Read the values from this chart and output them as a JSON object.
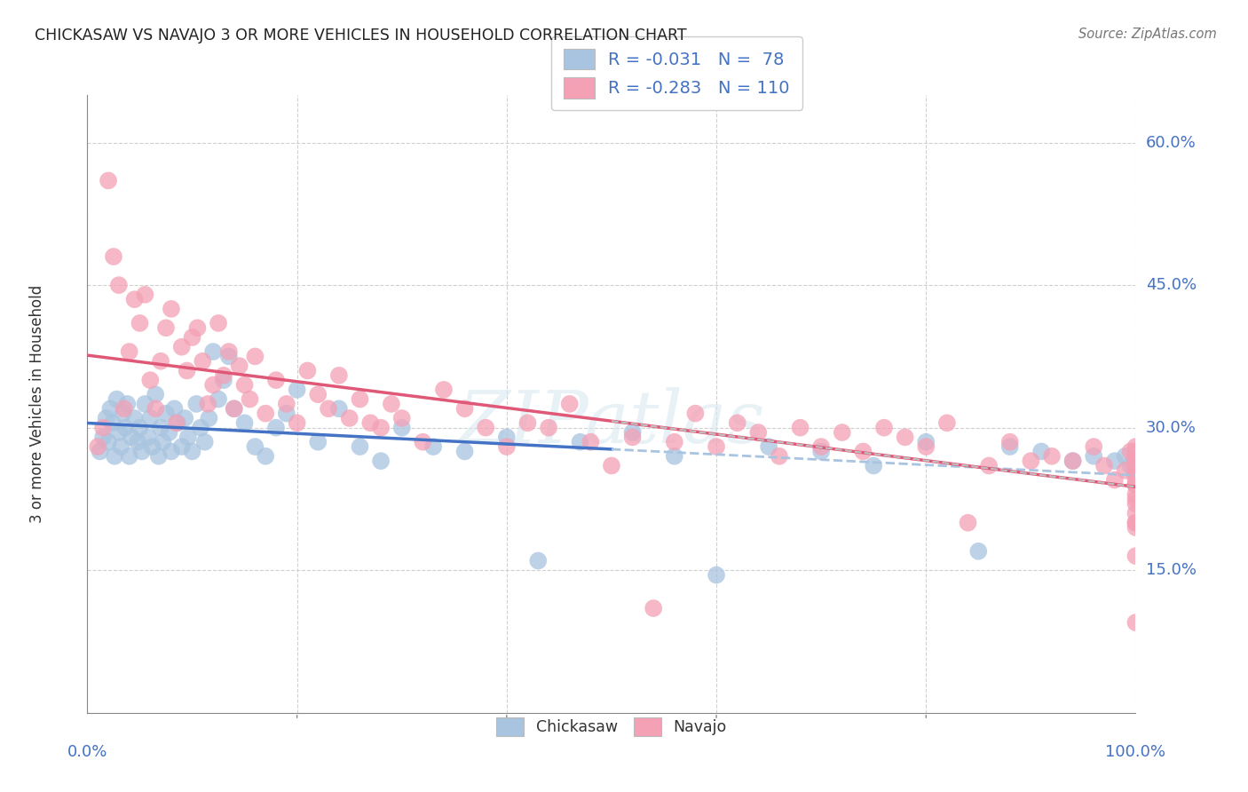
{
  "title": "CHICKASAW VS NAVAJO 3 OR MORE VEHICLES IN HOUSEHOLD CORRELATION CHART",
  "source": "Source: ZipAtlas.com",
  "ylabel": "3 or more Vehicles in Household",
  "watermark": "ZIPatlas",
  "chickasaw_color": "#a8c4e0",
  "navajo_color": "#f4a0b5",
  "chickasaw_line_color": "#4472c4",
  "navajo_line_color": "#e05878",
  "dashed_line_color": "#a8c4e0",
  "background_color": "#ffffff",
  "grid_color": "#d0d0d0",
  "xmin": 0.0,
  "xmax": 100.0,
  "ymin": 0.0,
  "ymax": 65.0,
  "yticks": [
    0.0,
    15.0,
    30.0,
    45.0,
    60.0
  ],
  "ytick_labels": [
    "",
    "15.0%",
    "30.0%",
    "45.0%",
    "60.0%"
  ],
  "tick_label_color": "#4472c4",
  "chickasaw_R": -0.031,
  "chickasaw_N": 78,
  "navajo_R": -0.283,
  "navajo_N": 110,
  "chick_x": [
    1.2,
    1.5,
    1.8,
    2.0,
    2.2,
    2.4,
    2.6,
    2.8,
    3.0,
    3.2,
    3.4,
    3.6,
    3.8,
    4.0,
    4.2,
    4.5,
    4.8,
    5.0,
    5.2,
    5.5,
    5.8,
    6.0,
    6.2,
    6.5,
    6.8,
    7.0,
    7.2,
    7.5,
    7.8,
    8.0,
    8.3,
    8.6,
    9.0,
    9.3,
    9.6,
    10.0,
    10.4,
    10.8,
    11.2,
    11.6,
    12.0,
    12.5,
    13.0,
    13.5,
    14.0,
    15.0,
    16.0,
    17.0,
    18.0,
    19.0,
    20.0,
    22.0,
    24.0,
    26.0,
    28.0,
    30.0,
    33.0,
    36.0,
    40.0,
    43.0,
    47.0,
    52.0,
    56.0,
    60.0,
    65.0,
    70.0,
    75.0,
    80.0,
    85.0,
    88.0,
    91.0,
    94.0,
    96.0,
    98.0,
    99.0,
    99.5,
    100.0,
    100.0
  ],
  "chick_y": [
    27.5,
    29.0,
    31.0,
    28.5,
    32.0,
    30.5,
    27.0,
    33.0,
    29.5,
    28.0,
    31.5,
    30.0,
    32.5,
    27.0,
    29.0,
    31.0,
    28.5,
    30.0,
    27.5,
    32.5,
    29.0,
    31.0,
    28.0,
    33.5,
    27.0,
    30.0,
    28.5,
    31.5,
    29.5,
    27.5,
    32.0,
    30.5,
    28.0,
    31.0,
    29.0,
    27.5,
    32.5,
    30.0,
    28.5,
    31.0,
    38.0,
    33.0,
    35.0,
    37.5,
    32.0,
    30.5,
    28.0,
    27.0,
    30.0,
    31.5,
    34.0,
    28.5,
    32.0,
    28.0,
    26.5,
    30.0,
    28.0,
    27.5,
    29.0,
    16.0,
    28.5,
    29.5,
    27.0,
    14.5,
    28.0,
    27.5,
    26.0,
    28.5,
    17.0,
    28.0,
    27.5,
    26.5,
    27.0,
    26.5,
    27.0,
    26.0,
    26.5,
    25.5
  ],
  "nav_x": [
    1.0,
    1.5,
    2.0,
    2.5,
    3.0,
    3.5,
    4.0,
    4.5,
    5.0,
    5.5,
    6.0,
    6.5,
    7.0,
    7.5,
    8.0,
    8.5,
    9.0,
    9.5,
    10.0,
    10.5,
    11.0,
    11.5,
    12.0,
    12.5,
    13.0,
    13.5,
    14.0,
    14.5,
    15.0,
    15.5,
    16.0,
    17.0,
    18.0,
    19.0,
    20.0,
    21.0,
    22.0,
    23.0,
    24.0,
    25.0,
    26.0,
    27.0,
    28.0,
    29.0,
    30.0,
    32.0,
    34.0,
    36.0,
    38.0,
    40.0,
    42.0,
    44.0,
    46.0,
    48.0,
    50.0,
    52.0,
    54.0,
    56.0,
    58.0,
    60.0,
    62.0,
    64.0,
    66.0,
    68.0,
    70.0,
    72.0,
    74.0,
    76.0,
    78.0,
    80.0,
    82.0,
    84.0,
    86.0,
    88.0,
    90.0,
    92.0,
    94.0,
    96.0,
    97.0,
    98.0,
    99.0,
    99.5,
    100.0,
    100.0,
    100.0,
    100.0,
    100.0,
    100.0,
    100.0,
    100.0,
    100.0,
    100.0,
    100.0,
    100.0,
    100.0,
    100.0,
    100.0,
    100.0,
    100.0,
    100.0,
    100.0,
    100.0,
    100.0,
    100.0,
    100.0,
    100.0,
    100.0,
    100.0,
    100.0,
    100.0
  ],
  "nav_y": [
    28.0,
    30.0,
    56.0,
    48.0,
    45.0,
    32.0,
    38.0,
    43.5,
    41.0,
    44.0,
    35.0,
    32.0,
    37.0,
    40.5,
    42.5,
    30.5,
    38.5,
    36.0,
    39.5,
    40.5,
    37.0,
    32.5,
    34.5,
    41.0,
    35.5,
    38.0,
    32.0,
    36.5,
    34.5,
    33.0,
    37.5,
    31.5,
    35.0,
    32.5,
    30.5,
    36.0,
    33.5,
    32.0,
    35.5,
    31.0,
    33.0,
    30.5,
    30.0,
    32.5,
    31.0,
    28.5,
    34.0,
    32.0,
    30.0,
    28.0,
    30.5,
    30.0,
    32.5,
    28.5,
    26.0,
    29.0,
    11.0,
    28.5,
    31.5,
    28.0,
    30.5,
    29.5,
    27.0,
    30.0,
    28.0,
    29.5,
    27.5,
    30.0,
    29.0,
    28.0,
    30.5,
    20.0,
    26.0,
    28.5,
    26.5,
    27.0,
    26.5,
    28.0,
    26.0,
    24.5,
    25.5,
    27.5,
    26.0,
    28.0,
    26.5,
    25.0,
    27.5,
    20.0,
    25.0,
    27.0,
    22.0,
    25.5,
    26.5,
    24.0,
    27.0,
    25.0,
    22.5,
    26.0,
    20.0,
    24.5,
    19.5,
    27.0,
    24.0,
    16.5,
    21.0,
    25.5,
    23.0,
    9.5,
    26.0,
    24.0
  ]
}
